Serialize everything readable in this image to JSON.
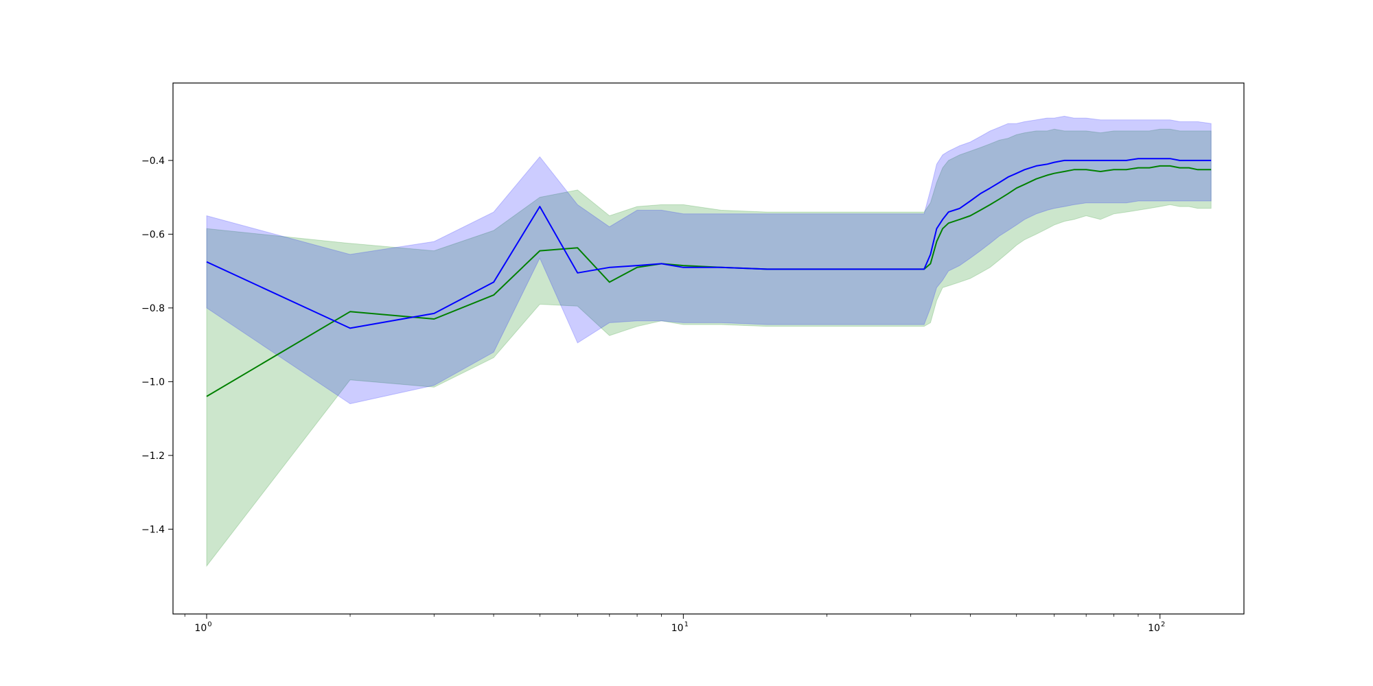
{
  "chart_data": {
    "type": "line",
    "title": "",
    "xlabel": "",
    "ylabel": "",
    "x_scale": "log",
    "xlim": [
      0.85,
      150
    ],
    "ylim": [
      -1.63,
      -0.19
    ],
    "grid": false,
    "legend": "none",
    "x_ticks": [
      {
        "value": 1,
        "base": "10",
        "exp": "0"
      },
      {
        "value": 10,
        "base": "10",
        "exp": "1"
      },
      {
        "value": 100,
        "base": "10",
        "exp": "2"
      }
    ],
    "y_ticks": [
      {
        "value": -0.4,
        "label": "−0.4"
      },
      {
        "value": -0.6,
        "label": "−0.6"
      },
      {
        "value": -0.8,
        "label": "−0.8"
      },
      {
        "value": -1.0,
        "label": "−1.0"
      },
      {
        "value": -1.2,
        "label": "−1.2"
      },
      {
        "value": -1.4,
        "label": "−1.4"
      }
    ],
    "series": [
      {
        "color": "#008000",
        "fill_color": "#008000",
        "x": [
          1,
          2,
          3,
          4,
          5,
          6,
          7,
          8,
          9,
          10,
          12,
          15,
          20,
          25,
          30,
          32,
          33,
          34,
          35,
          36,
          38,
          40,
          42,
          44,
          46,
          48,
          50,
          52,
          55,
          58,
          60,
          63,
          66,
          70,
          75,
          80,
          85,
          90,
          95,
          100,
          105,
          110,
          115,
          120,
          128
        ],
        "values": [
          -1.04,
          -0.81,
          -0.83,
          -0.765,
          -0.645,
          -0.637,
          -0.73,
          -0.69,
          -0.68,
          -0.685,
          -0.69,
          -0.695,
          -0.695,
          -0.695,
          -0.695,
          -0.695,
          -0.68,
          -0.62,
          -0.585,
          -0.57,
          -0.56,
          -0.55,
          -0.535,
          -0.52,
          -0.505,
          -0.49,
          -0.475,
          -0.465,
          -0.45,
          -0.44,
          -0.435,
          -0.43,
          -0.425,
          -0.425,
          -0.43,
          -0.425,
          -0.425,
          -0.42,
          -0.42,
          -0.415,
          -0.415,
          -0.42,
          -0.42,
          -0.425,
          -0.425
        ],
        "upper": [
          -0.585,
          -0.625,
          -0.645,
          -0.59,
          -0.5,
          -0.48,
          -0.55,
          -0.525,
          -0.52,
          -0.52,
          -0.535,
          -0.54,
          -0.54,
          -0.54,
          -0.54,
          -0.54,
          -0.515,
          -0.46,
          -0.42,
          -0.4,
          -0.385,
          -0.375,
          -0.365,
          -0.355,
          -0.345,
          -0.34,
          -0.33,
          -0.325,
          -0.32,
          -0.32,
          -0.315,
          -0.32,
          -0.32,
          -0.32,
          -0.325,
          -0.32,
          -0.32,
          -0.32,
          -0.32,
          -0.315,
          -0.315,
          -0.32,
          -0.32,
          -0.32,
          -0.32
        ],
        "lower": [
          -1.5,
          -0.995,
          -1.015,
          -0.935,
          -0.79,
          -0.795,
          -0.875,
          -0.85,
          -0.835,
          -0.845,
          -0.845,
          -0.85,
          -0.85,
          -0.85,
          -0.85,
          -0.85,
          -0.84,
          -0.78,
          -0.745,
          -0.74,
          -0.73,
          -0.72,
          -0.705,
          -0.69,
          -0.67,
          -0.65,
          -0.63,
          -0.615,
          -0.6,
          -0.585,
          -0.575,
          -0.565,
          -0.56,
          -0.55,
          -0.56,
          -0.545,
          -0.54,
          -0.535,
          -0.53,
          -0.525,
          -0.52,
          -0.525,
          -0.525,
          -0.53,
          -0.53
        ]
      },
      {
        "color": "#0000ff",
        "fill_color": "#0000ff",
        "x": [
          1,
          2,
          3,
          4,
          5,
          6,
          7,
          8,
          9,
          10,
          12,
          15,
          20,
          25,
          30,
          32,
          33,
          34,
          35,
          36,
          38,
          40,
          42,
          44,
          46,
          48,
          50,
          52,
          55,
          58,
          60,
          63,
          66,
          70,
          75,
          80,
          85,
          90,
          95,
          100,
          105,
          110,
          115,
          120,
          128
        ],
        "values": [
          -0.675,
          -0.855,
          -0.815,
          -0.73,
          -0.525,
          -0.705,
          -0.69,
          -0.685,
          -0.68,
          -0.69,
          -0.69,
          -0.695,
          -0.695,
          -0.695,
          -0.695,
          -0.695,
          -0.655,
          -0.585,
          -0.56,
          -0.54,
          -0.53,
          -0.51,
          -0.49,
          -0.475,
          -0.46,
          -0.445,
          -0.435,
          -0.425,
          -0.415,
          -0.41,
          -0.405,
          -0.4,
          -0.4,
          -0.4,
          -0.4,
          -0.4,
          -0.4,
          -0.395,
          -0.395,
          -0.395,
          -0.395,
          -0.4,
          -0.4,
          -0.4,
          -0.4
        ],
        "upper": [
          -0.55,
          -0.655,
          -0.62,
          -0.54,
          -0.39,
          -0.52,
          -0.58,
          -0.535,
          -0.535,
          -0.545,
          -0.545,
          -0.545,
          -0.545,
          -0.545,
          -0.545,
          -0.545,
          -0.48,
          -0.41,
          -0.385,
          -0.375,
          -0.36,
          -0.35,
          -0.335,
          -0.32,
          -0.31,
          -0.3,
          -0.3,
          -0.295,
          -0.29,
          -0.285,
          -0.285,
          -0.28,
          -0.285,
          -0.285,
          -0.29,
          -0.29,
          -0.29,
          -0.29,
          -0.29,
          -0.29,
          -0.29,
          -0.295,
          -0.295,
          -0.295,
          -0.3
        ],
        "lower": [
          -0.8,
          -1.06,
          -1.01,
          -0.92,
          -0.665,
          -0.895,
          -0.84,
          -0.835,
          -0.835,
          -0.84,
          -0.84,
          -0.845,
          -0.845,
          -0.845,
          -0.845,
          -0.845,
          -0.8,
          -0.745,
          -0.725,
          -0.7,
          -0.685,
          -0.665,
          -0.645,
          -0.625,
          -0.605,
          -0.59,
          -0.575,
          -0.56,
          -0.545,
          -0.535,
          -0.53,
          -0.525,
          -0.52,
          -0.515,
          -0.515,
          -0.515,
          -0.515,
          -0.51,
          -0.51,
          -0.51,
          -0.51,
          -0.51,
          -0.51,
          -0.51,
          -0.51
        ]
      }
    ]
  }
}
